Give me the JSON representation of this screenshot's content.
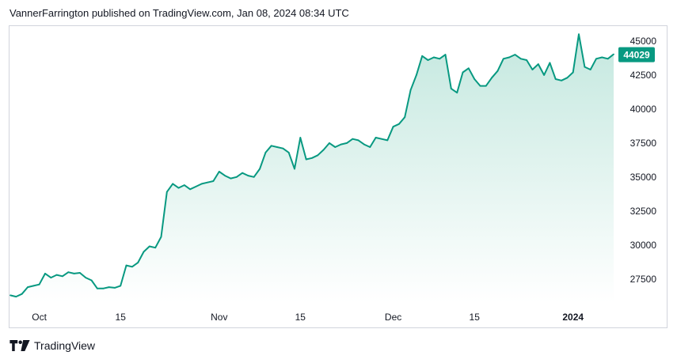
{
  "header": {
    "attribution": "VannerFarrington published on TradingView.com, Jan 08, 2024 08:34 UTC"
  },
  "footer": {
    "brand": "TradingView",
    "logo_icon": "tradingview-logo-icon"
  },
  "colors": {
    "line": "#089981",
    "fill_top": "#c4e8df",
    "fill_bottom": "#ffffff",
    "axis_text": "#131722",
    "label_bg": "#089981",
    "label_text": "#ffffff"
  },
  "chart_data": {
    "type": "area",
    "title": "",
    "xlabel": "",
    "ylabel": "",
    "ylim": [
      25800,
      46100
    ],
    "yticks": [
      27500,
      30000,
      32500,
      35000,
      37500,
      40000,
      42500,
      45000
    ],
    "ytick_labels": [
      "27500",
      "30000",
      "32500",
      "35000",
      "37500",
      "40000",
      "42500",
      "45000"
    ],
    "xticks": [
      {
        "date": "2023-10-01",
        "label": "Oct",
        "bold": false
      },
      {
        "date": "2023-10-15",
        "label": "15",
        "bold": false
      },
      {
        "date": "2023-11-01",
        "label": "Nov",
        "bold": false
      },
      {
        "date": "2023-11-15",
        "label": "15",
        "bold": false
      },
      {
        "date": "2023-12-01",
        "label": "Dec",
        "bold": false
      },
      {
        "date": "2023-12-15",
        "label": "15",
        "bold": false
      },
      {
        "date": "2024-01-01",
        "label": "2024",
        "bold": true
      }
    ],
    "grid": false,
    "last_value": 44029,
    "last_value_label": "44029",
    "series": [
      {
        "x": [
          "2023-09-26",
          "2023-09-27",
          "2023-09-28",
          "2023-09-29",
          "2023-09-30",
          "2023-10-01",
          "2023-10-02",
          "2023-10-03",
          "2023-10-04",
          "2023-10-05",
          "2023-10-06",
          "2023-10-07",
          "2023-10-08",
          "2023-10-09",
          "2023-10-10",
          "2023-10-11",
          "2023-10-12",
          "2023-10-13",
          "2023-10-14",
          "2023-10-15",
          "2023-10-16",
          "2023-10-17",
          "2023-10-18",
          "2023-10-19",
          "2023-10-20",
          "2023-10-21",
          "2023-10-22",
          "2023-10-23",
          "2023-10-24",
          "2023-10-25",
          "2023-10-26",
          "2023-10-27",
          "2023-10-28",
          "2023-10-29",
          "2023-10-30",
          "2023-10-31",
          "2023-11-01",
          "2023-11-02",
          "2023-11-03",
          "2023-11-04",
          "2023-11-05",
          "2023-11-06",
          "2023-11-07",
          "2023-11-08",
          "2023-11-09",
          "2023-11-10",
          "2023-11-11",
          "2023-11-12",
          "2023-11-13",
          "2023-11-14",
          "2023-11-15",
          "2023-11-16",
          "2023-11-17",
          "2023-11-18",
          "2023-11-19",
          "2023-11-20",
          "2023-11-21",
          "2023-11-22",
          "2023-11-23",
          "2023-11-24",
          "2023-11-25",
          "2023-11-26",
          "2023-11-27",
          "2023-11-28",
          "2023-11-29",
          "2023-11-30",
          "2023-12-01",
          "2023-12-02",
          "2023-12-03",
          "2023-12-04",
          "2023-12-05",
          "2023-12-06",
          "2023-12-07",
          "2023-12-08",
          "2023-12-09",
          "2023-12-10",
          "2023-12-11",
          "2023-12-12",
          "2023-12-13",
          "2023-12-14",
          "2023-12-15",
          "2023-12-16",
          "2023-12-17",
          "2023-12-18",
          "2023-12-19",
          "2023-12-20",
          "2023-12-21",
          "2023-12-22",
          "2023-12-23",
          "2023-12-24",
          "2023-12-25",
          "2023-12-26",
          "2023-12-27",
          "2023-12-28",
          "2023-12-29",
          "2023-12-30",
          "2023-12-31",
          "2024-01-01",
          "2024-01-02",
          "2024-01-03",
          "2024-01-04",
          "2024-01-05",
          "2024-01-06",
          "2024-01-07",
          "2024-01-08"
        ],
        "values": [
          26300,
          26200,
          26400,
          26900,
          27000,
          27100,
          27900,
          27600,
          27800,
          27700,
          28000,
          27900,
          27950,
          27600,
          27400,
          26800,
          26800,
          26900,
          26850,
          27000,
          28500,
          28400,
          28700,
          29500,
          29900,
          29800,
          30600,
          33900,
          34500,
          34200,
          34400,
          34100,
          34300,
          34500,
          34600,
          34700,
          35400,
          35100,
          34900,
          35000,
          35300,
          35100,
          35000,
          35600,
          36800,
          37300,
          37200,
          37100,
          36800,
          35600,
          37900,
          36300,
          36400,
          36600,
          37000,
          37500,
          37200,
          37400,
          37500,
          37800,
          37700,
          37400,
          37200,
          37900,
          37800,
          37700,
          38700,
          38900,
          39400,
          41400,
          42500,
          43900,
          43600,
          43800,
          43700,
          44000,
          41500,
          41200,
          42700,
          43000,
          42200,
          41700,
          41700,
          42300,
          42800,
          43700,
          43800,
          44000,
          43700,
          43600,
          42900,
          43300,
          42500,
          43400,
          42200,
          42100,
          42300,
          42700,
          45500,
          43100,
          42900,
          43700,
          43800,
          43700,
          44029
        ]
      }
    ]
  }
}
